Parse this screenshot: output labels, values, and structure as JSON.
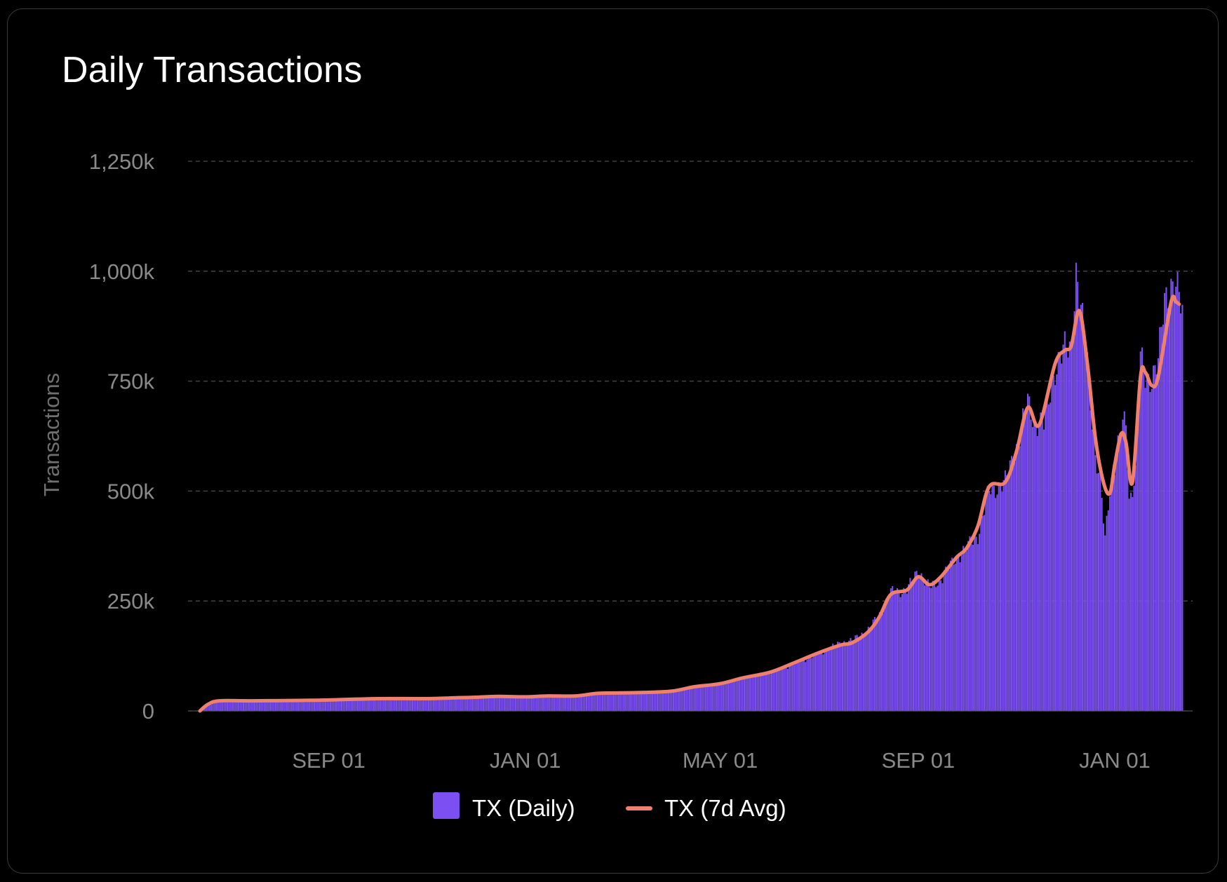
{
  "chart_data": {
    "type": "bar",
    "title": "Daily Transactions",
    "ylabel": "Transactions",
    "xlabel": "",
    "ylim": [
      0,
      1250000
    ],
    "yticks": [
      {
        "value": 0,
        "label": "0"
      },
      {
        "value": 250000,
        "label": "250k"
      },
      {
        "value": 500000,
        "label": "500k"
      },
      {
        "value": 750000,
        "label": "750k"
      },
      {
        "value": 1000000,
        "label": "1,000k"
      },
      {
        "value": 1250000,
        "label": "1,250k"
      }
    ],
    "xticks": [
      {
        "label": "SEP 01",
        "date": "2023-09-01"
      },
      {
        "label": "JAN 01",
        "date": "2024-01-01"
      },
      {
        "label": "MAY 01",
        "date": "2024-05-01"
      },
      {
        "label": "SEP 01",
        "date": "2024-09-01"
      },
      {
        "label": "JAN 01",
        "date": "2025-01-01"
      }
    ],
    "x_start": "2023-06-13",
    "x_end": "2025-02-14",
    "grid": true,
    "legend_position": "bottom",
    "series": [
      {
        "name": "TX (Daily)",
        "kind": "bar",
        "color": "#7b4ff2",
        "points": [
          [
            "2023-06-13",
            0
          ],
          [
            "2023-06-18",
            12000
          ],
          [
            "2023-06-25",
            23000
          ],
          [
            "2023-07-15",
            23000
          ],
          [
            "2023-08-15",
            24000
          ],
          [
            "2023-09-01",
            25000
          ],
          [
            "2023-10-01",
            28000
          ],
          [
            "2023-11-01",
            29000
          ],
          [
            "2023-11-15",
            27000
          ],
          [
            "2023-12-01",
            31000
          ],
          [
            "2023-12-15",
            33000
          ],
          [
            "2024-01-01",
            29000
          ],
          [
            "2024-01-15",
            34000
          ],
          [
            "2024-02-01",
            34000
          ],
          [
            "2024-02-15",
            40000
          ],
          [
            "2024-03-01",
            41000
          ],
          [
            "2024-03-15",
            42000
          ],
          [
            "2024-04-01",
            44000
          ],
          [
            "2024-04-15",
            55000
          ],
          [
            "2024-05-01",
            62000
          ],
          [
            "2024-05-15",
            75000
          ],
          [
            "2024-06-01",
            88000
          ],
          [
            "2024-06-15",
            105000
          ],
          [
            "2024-07-01",
            130000
          ],
          [
            "2024-07-15",
            155000
          ],
          [
            "2024-07-22",
            160000
          ],
          [
            "2024-08-01",
            185000
          ],
          [
            "2024-08-08",
            220000
          ],
          [
            "2024-08-15",
            270000
          ],
          [
            "2024-08-25",
            275000
          ],
          [
            "2024-09-01",
            320000
          ],
          [
            "2024-09-08",
            280000
          ],
          [
            "2024-09-15",
            300000
          ],
          [
            "2024-09-25",
            350000
          ],
          [
            "2024-10-01",
            370000
          ],
          [
            "2024-10-08",
            400000
          ],
          [
            "2024-10-15",
            500000
          ],
          [
            "2024-10-25",
            520000
          ],
          [
            "2024-11-01",
            600000
          ],
          [
            "2024-11-08",
            700000
          ],
          [
            "2024-11-12",
            660000
          ],
          [
            "2024-11-18",
            650000
          ],
          [
            "2024-11-25",
            780000
          ],
          [
            "2024-12-01",
            820000
          ],
          [
            "2024-12-05",
            830000
          ],
          [
            "2024-12-08",
            1000000
          ],
          [
            "2024-12-12",
            880000
          ],
          [
            "2024-12-15",
            800000
          ],
          [
            "2024-12-20",
            580000
          ],
          [
            "2024-12-23",
            520000
          ],
          [
            "2024-12-26",
            390000
          ],
          [
            "2024-12-29",
            510000
          ],
          [
            "2025-01-01",
            560000
          ],
          [
            "2025-01-05",
            640000
          ],
          [
            "2025-01-08",
            660000
          ],
          [
            "2025-01-10",
            480000
          ],
          [
            "2025-01-14",
            540000
          ],
          [
            "2025-01-17",
            800000
          ],
          [
            "2025-01-20",
            760000
          ],
          [
            "2025-01-24",
            760000
          ],
          [
            "2025-01-28",
            790000
          ],
          [
            "2025-02-01",
            940000
          ],
          [
            "2025-02-05",
            970000
          ],
          [
            "2025-02-08",
            960000
          ],
          [
            "2025-02-12",
            910000
          ]
        ]
      },
      {
        "name": "TX (7d Avg)",
        "kind": "line",
        "color": "#f0806e",
        "points": [
          [
            "2023-06-13",
            0
          ],
          [
            "2023-06-18",
            15000
          ],
          [
            "2023-06-25",
            23000
          ],
          [
            "2023-07-15",
            23000
          ],
          [
            "2023-08-15",
            24000
          ],
          [
            "2023-09-01",
            25000
          ],
          [
            "2023-10-01",
            28000
          ],
          [
            "2023-11-01",
            28000
          ],
          [
            "2023-11-20",
            30000
          ],
          [
            "2023-12-01",
            31000
          ],
          [
            "2023-12-15",
            33000
          ],
          [
            "2024-01-01",
            32000
          ],
          [
            "2024-01-15",
            34000
          ],
          [
            "2024-02-01",
            34000
          ],
          [
            "2024-02-15",
            40000
          ],
          [
            "2024-03-01",
            41000
          ],
          [
            "2024-03-15",
            42000
          ],
          [
            "2024-04-01",
            45000
          ],
          [
            "2024-04-15",
            55000
          ],
          [
            "2024-05-01",
            62000
          ],
          [
            "2024-05-15",
            75000
          ],
          [
            "2024-06-01",
            88000
          ],
          [
            "2024-06-15",
            108000
          ],
          [
            "2024-07-01",
            132000
          ],
          [
            "2024-07-15",
            150000
          ],
          [
            "2024-07-22",
            155000
          ],
          [
            "2024-08-01",
            180000
          ],
          [
            "2024-08-08",
            215000
          ],
          [
            "2024-08-15",
            265000
          ],
          [
            "2024-08-25",
            275000
          ],
          [
            "2024-09-01",
            305000
          ],
          [
            "2024-09-08",
            287000
          ],
          [
            "2024-09-15",
            305000
          ],
          [
            "2024-09-25",
            350000
          ],
          [
            "2024-10-01",
            370000
          ],
          [
            "2024-10-08",
            420000
          ],
          [
            "2024-10-15",
            510000
          ],
          [
            "2024-10-25",
            520000
          ],
          [
            "2024-11-01",
            590000
          ],
          [
            "2024-11-08",
            690000
          ],
          [
            "2024-11-15",
            650000
          ],
          [
            "2024-11-25",
            790000
          ],
          [
            "2024-12-01",
            820000
          ],
          [
            "2024-12-05",
            830000
          ],
          [
            "2024-12-10",
            910000
          ],
          [
            "2024-12-15",
            790000
          ],
          [
            "2024-12-20",
            620000
          ],
          [
            "2024-12-25",
            520000
          ],
          [
            "2024-12-29",
            495000
          ],
          [
            "2025-01-01",
            560000
          ],
          [
            "2025-01-05",
            630000
          ],
          [
            "2025-01-08",
            610000
          ],
          [
            "2025-01-12",
            520000
          ],
          [
            "2025-01-17",
            760000
          ],
          [
            "2025-01-20",
            770000
          ],
          [
            "2025-01-24",
            740000
          ],
          [
            "2025-01-28",
            760000
          ],
          [
            "2025-02-05",
            930000
          ],
          [
            "2025-02-08",
            930000
          ],
          [
            "2025-02-10",
            925000
          ]
        ]
      }
    ]
  }
}
